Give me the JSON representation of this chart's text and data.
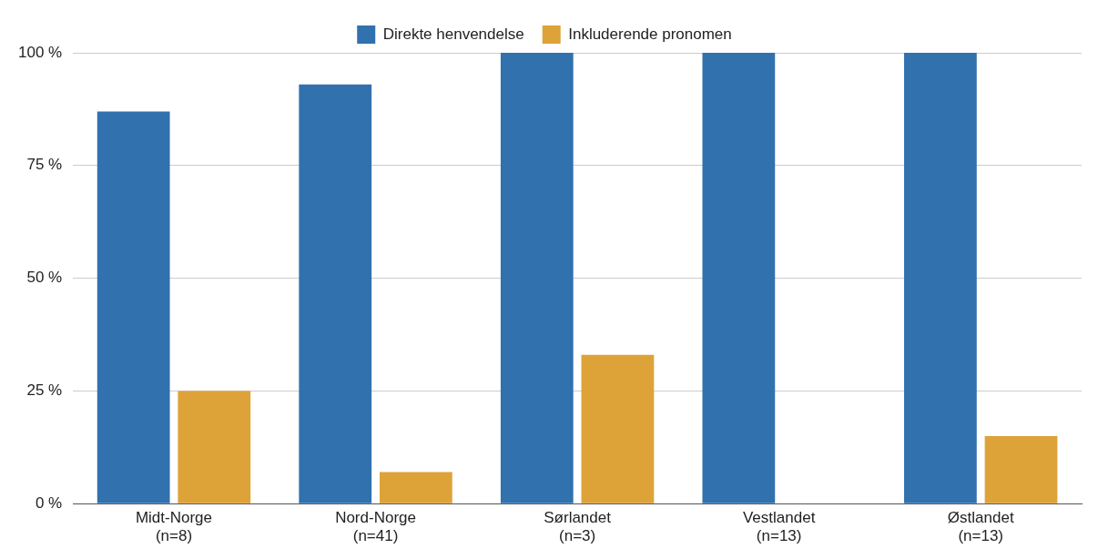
{
  "chart_data": {
    "type": "bar",
    "categories": [
      "Midt-Norge\n(n=8)",
      "Nord-Norge\n(n=41)",
      "Sørlandet\n(n=3)",
      "Vestlandet\n(n=13)",
      "Østlandet\n(n=13)"
    ],
    "series": [
      {
        "name": "Direkte henvendelse",
        "color": "#3171ae",
        "values": [
          87,
          93,
          100,
          100,
          100
        ]
      },
      {
        "name": "Inkluderende pronomen",
        "color": "#dda238",
        "values": [
          25,
          7,
          33,
          0,
          15
        ]
      }
    ],
    "ylim": [
      0,
      100
    ],
    "yticks": [
      {
        "value": 0,
        "label": "0 %"
      },
      {
        "value": 25,
        "label": "25 %"
      },
      {
        "value": 50,
        "label": "50 %"
      },
      {
        "value": 75,
        "label": "75 %"
      },
      {
        "value": 100,
        "label": "100 %"
      }
    ],
    "grid": "y",
    "legend": "top"
  }
}
